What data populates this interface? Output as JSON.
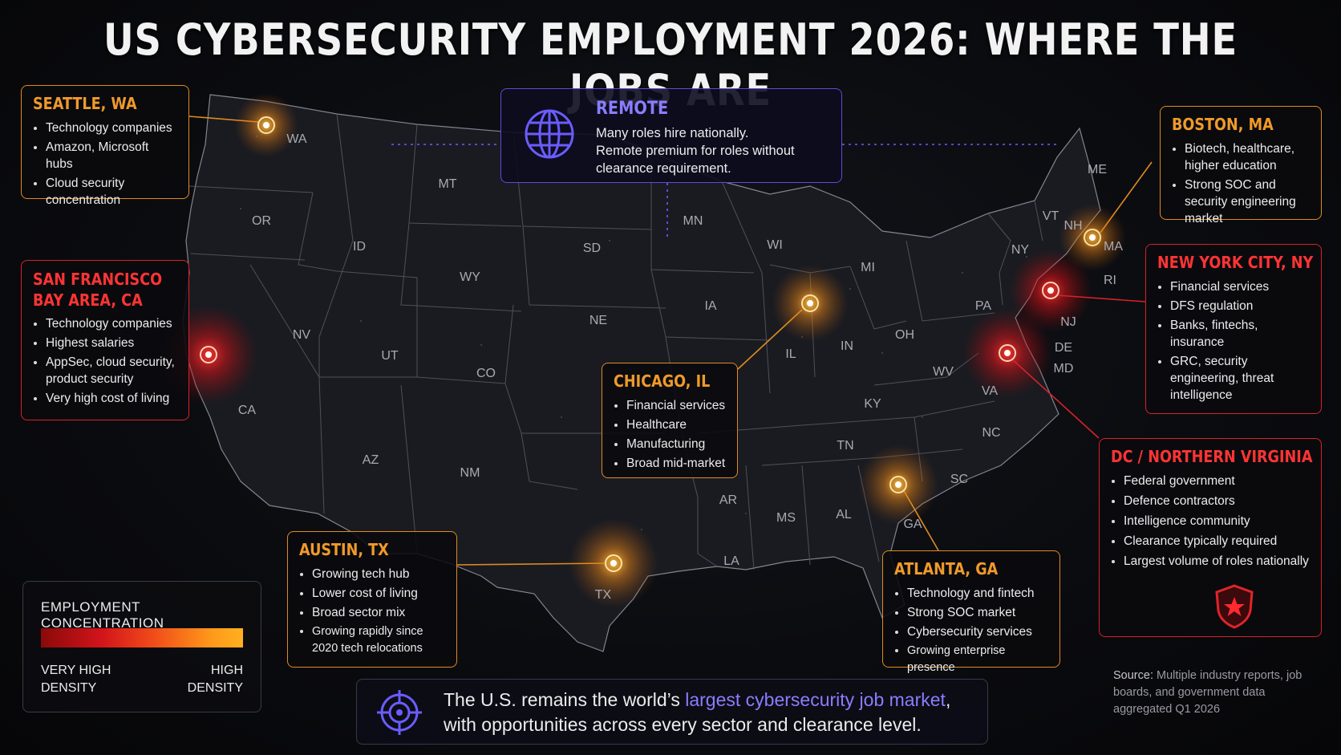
{
  "title": "US CYBERSECURITY EMPLOYMENT 2026: WHERE THE JOBS ARE",
  "colors": {
    "orange": "#f09a2a",
    "red": "#ff3434",
    "purple": "#8a7dff",
    "background": "#0b0c10"
  },
  "states": {
    "WA": "WA",
    "OR": "OR",
    "CA": "CA",
    "ID": "ID",
    "NV": "NV",
    "MT": "MT",
    "WY": "WY",
    "UT": "UT",
    "AZ": "AZ",
    "CO": "CO",
    "NM": "NM",
    "SD": "SD",
    "NE": "NE",
    "MN": "MN",
    "IA": "IA",
    "WI": "WI",
    "IL": "IL",
    "MI": "MI",
    "IN": "IN",
    "OH": "OH",
    "TX": "TX",
    "AR": "AR",
    "LA": "LA",
    "MS": "MS",
    "AL": "AL",
    "GA": "GA",
    "TN": "TN",
    "KY": "KY",
    "WV": "WV",
    "VA": "VA",
    "NC": "NC",
    "SC": "SC",
    "PA": "PA",
    "NY": "NY",
    "NJ": "NJ",
    "DE": "DE",
    "MD": "MD",
    "VT": "VT",
    "NH": "NH",
    "MA": "MA",
    "RI": "RI",
    "ME": "ME"
  },
  "remote": {
    "icon": "globe-icon",
    "title": "REMOTE",
    "lines": [
      "Many roles hire nationally.",
      "Remote premium for roles without",
      "clearance requirement."
    ]
  },
  "hubs": {
    "seattle": {
      "title": "SEATTLE, WA",
      "density": "high",
      "items": [
        "Technology companies",
        "Amazon, Microsoft hubs",
        "Cloud security concentration"
      ]
    },
    "sf": {
      "title_lines": [
        "SAN FRANCISCO",
        "BAY AREA, CA"
      ],
      "density": "very-high",
      "items": [
        "Technology companies",
        "Highest salaries",
        "AppSec, cloud security, product security",
        "Very high cost of living"
      ]
    },
    "chicago": {
      "title": "CHICAGO, IL",
      "density": "high",
      "items": [
        "Financial services",
        "Healthcare",
        "Manufacturing",
        "Broad mid-market"
      ]
    },
    "austin": {
      "title": "AUSTIN, TX",
      "density": "high",
      "items": [
        "Growing tech hub",
        "Lower cost of living",
        "Broad sector mix",
        "Growing rapidly since 2020 tech relocations"
      ]
    },
    "atlanta": {
      "title": "ATLANTA, GA",
      "density": "high",
      "items": [
        "Technology and fintech",
        "Strong SOC market",
        "Cybersecurity services",
        "Growing enterprise presence"
      ]
    },
    "boston": {
      "title": "BOSTON, MA",
      "density": "high",
      "items": [
        "Biotech, healthcare, higher education",
        "Strong SOC and security engineering market"
      ]
    },
    "nyc": {
      "title": "NEW YORK CITY, NY",
      "density": "very-high",
      "items": [
        "Financial services",
        "DFS regulation",
        "Banks, fintechs, insurance",
        "GRC, security engineering, threat intelligence"
      ]
    },
    "dc": {
      "title": "DC / NORTHERN VIRGINIA",
      "density": "very-high",
      "icon": "shield-star-icon",
      "items": [
        "Federal government",
        "Defence contractors",
        "Intelligence community",
        "Clearance typically required",
        "Largest volume of roles nationally"
      ]
    }
  },
  "legend": {
    "title": "EMPLOYMENT CONCENTRATION",
    "left_label": [
      "VERY HIGH",
      "DENSITY"
    ],
    "right_label": [
      "HIGH",
      "DENSITY"
    ]
  },
  "banner": {
    "icon": "target-icon",
    "prefix": "The U.S. remains the world’s ",
    "highlight": "largest cybersecurity job market",
    "suffix": ",",
    "line2": "with opportunities across every sector and clearance level."
  },
  "source": {
    "label": "Source:",
    "text": " Multiple industry reports, job boards, and government data aggregated Q1 2026"
  }
}
